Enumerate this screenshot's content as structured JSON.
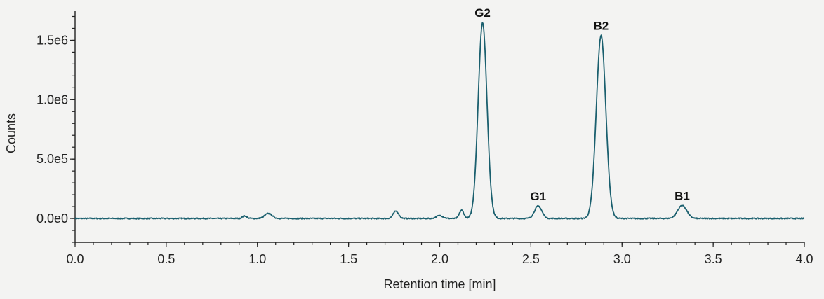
{
  "chart_data": {
    "type": "line",
    "xlabel": "Retention time [min]",
    "ylabel": "Counts",
    "xlim": [
      0,
      4.0
    ],
    "ylim": [
      -200000,
      1750000
    ],
    "x_ticks": [
      {
        "value": 0.0,
        "label": "0.0"
      },
      {
        "value": 0.5,
        "label": "0.5"
      },
      {
        "value": 1.0,
        "label": "1.0"
      },
      {
        "value": 1.5,
        "label": "1.5"
      },
      {
        "value": 2.0,
        "label": "2.0"
      },
      {
        "value": 2.5,
        "label": "2.5"
      },
      {
        "value": 3.0,
        "label": "3.0"
      },
      {
        "value": 3.5,
        "label": "3.5"
      },
      {
        "value": 4.0,
        "label": "4.0"
      }
    ],
    "y_ticks": [
      {
        "value": 0,
        "label": "0.0e0"
      },
      {
        "value": 500000,
        "label": "5.0e5"
      },
      {
        "value": 1000000,
        "label": "1.0e6"
      },
      {
        "value": 1500000,
        "label": "1.5e6"
      }
    ],
    "grid": false,
    "line_color": "#1a5f6e",
    "baseline": 0,
    "peaks": [
      {
        "label": "",
        "x": 0.93,
        "height": 22000,
        "width": 0.012
      },
      {
        "label": "",
        "x": 1.06,
        "height": 42000,
        "width": 0.02
      },
      {
        "label": "",
        "x": 1.76,
        "height": 62000,
        "width": 0.015
      },
      {
        "label": "",
        "x": 2.0,
        "height": 25000,
        "width": 0.018
      },
      {
        "label": "",
        "x": 2.12,
        "height": 70000,
        "width": 0.012
      },
      {
        "label": "G2",
        "x": 2.235,
        "height": 1650000,
        "width": 0.024
      },
      {
        "label": "G1",
        "x": 2.54,
        "height": 105000,
        "width": 0.02
      },
      {
        "label": "B2",
        "x": 2.885,
        "height": 1540000,
        "width": 0.026
      },
      {
        "label": "B1",
        "x": 3.33,
        "height": 110000,
        "width": 0.025
      }
    ]
  }
}
